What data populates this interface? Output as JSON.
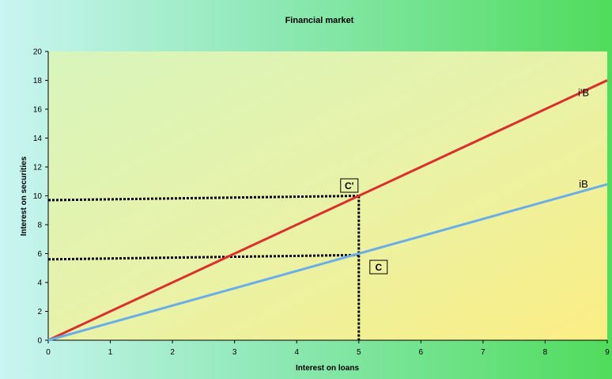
{
  "chart_data": {
    "type": "line",
    "title": "Financial market",
    "xlabel": "Interest on loans",
    "ylabel": "Interest on securities",
    "xlim": [
      0,
      9
    ],
    "ylim": [
      0,
      20
    ],
    "x_ticks": [
      0,
      1,
      2,
      3,
      4,
      5,
      6,
      7,
      8,
      9
    ],
    "y_ticks": [
      0,
      2,
      4,
      6,
      8,
      10,
      12,
      14,
      16,
      18,
      20
    ],
    "grid": false,
    "series": [
      {
        "name": "i'B",
        "color": "#d9302c",
        "x": [
          0,
          9
        ],
        "y": [
          0,
          18
        ]
      },
      {
        "name": "iB",
        "color": "#6aaee8",
        "x": [
          0,
          9
        ],
        "y": [
          0,
          10.8
        ]
      }
    ],
    "points": [
      {
        "label": "C'",
        "x": 5,
        "y": 10
      },
      {
        "label": "C",
        "x": 5,
        "y": 6
      }
    ],
    "reference_lines": [
      {
        "from": [
          0,
          9.7
        ],
        "to": [
          5,
          10
        ]
      },
      {
        "from": [
          0,
          5.6
        ],
        "to": [
          5,
          5.9
        ]
      },
      {
        "from": [
          5,
          10
        ],
        "to": [
          5,
          0
        ]
      }
    ]
  }
}
